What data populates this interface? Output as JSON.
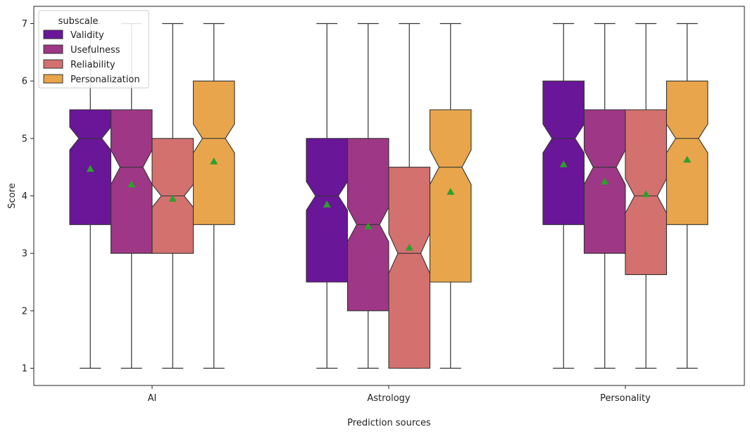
{
  "chart_data": {
    "type": "box",
    "title": "",
    "xlabel": "Prediction sources",
    "ylabel": "Score",
    "ylim": [
      0.7,
      7.3
    ],
    "yticks": [
      1,
      2,
      3,
      4,
      5,
      6,
      7
    ],
    "categories": [
      "AI",
      "Astrology",
      "Personality"
    ],
    "legend": {
      "title": "subscale",
      "position": "top-left"
    },
    "notched": true,
    "show_means": true,
    "mean_color": "#2ca02c",
    "series": [
      {
        "name": "Validity",
        "color": "#6a1699",
        "boxes": [
          {
            "whisker_low": 1,
            "q1": 3.5,
            "median": 5,
            "q3": 5.5,
            "whisker_high": 7,
            "notch_low": 4.8,
            "notch_high": 5.2,
            "mean": 4.47
          },
          {
            "whisker_low": 1,
            "q1": 2.5,
            "median": 4,
            "q3": 5,
            "whisker_high": 7,
            "notch_low": 3.75,
            "notch_high": 4.25,
            "mean": 3.85
          },
          {
            "whisker_low": 1,
            "q1": 3.5,
            "median": 5,
            "q3": 6,
            "whisker_high": 7,
            "notch_low": 4.75,
            "notch_high": 5.25,
            "mean": 4.55
          }
        ]
      },
      {
        "name": "Usefulness",
        "color": "#9e3785",
        "boxes": [
          {
            "whisker_low": 1,
            "q1": 3,
            "median": 4.5,
            "q3": 5.5,
            "whisker_high": 7,
            "notch_low": 4.2,
            "notch_high": 4.8,
            "mean": 4.2
          },
          {
            "whisker_low": 1,
            "q1": 2,
            "median": 3.5,
            "q3": 5,
            "whisker_high": 7,
            "notch_low": 3.2,
            "notch_high": 3.8,
            "mean": 3.47
          },
          {
            "whisker_low": 1,
            "q1": 3,
            "median": 4.5,
            "q3": 5.5,
            "whisker_high": 7,
            "notch_low": 4.2,
            "notch_high": 4.8,
            "mean": 4.25
          }
        ]
      },
      {
        "name": "Reliability",
        "color": "#d3716e",
        "boxes": [
          {
            "whisker_low": 1,
            "q1": 3,
            "median": 4,
            "q3": 5,
            "whisker_high": 7,
            "notch_low": 3.8,
            "notch_high": 4.2,
            "mean": 3.95
          },
          {
            "whisker_low": 1,
            "q1": 1,
            "median": 3,
            "q3": 4.5,
            "whisker_high": 7,
            "notch_low": 2.65,
            "notch_high": 3.35,
            "mean": 3.1
          },
          {
            "whisker_low": 1,
            "q1": 2.63,
            "median": 4,
            "q3": 5.5,
            "whisker_high": 7,
            "notch_low": 3.7,
            "notch_high": 4.3,
            "mean": 4.03
          }
        ]
      },
      {
        "name": "Personalization",
        "color": "#e8a54b",
        "boxes": [
          {
            "whisker_low": 1,
            "q1": 3.5,
            "median": 5,
            "q3": 6,
            "whisker_high": 7,
            "notch_low": 4.75,
            "notch_high": 5.25,
            "mean": 4.6
          },
          {
            "whisker_low": 1,
            "q1": 2.5,
            "median": 4.5,
            "q3": 5.5,
            "whisker_high": 7,
            "notch_low": 4.2,
            "notch_high": 4.8,
            "mean": 4.07
          },
          {
            "whisker_low": 1,
            "q1": 3.5,
            "median": 5,
            "q3": 6,
            "whisker_high": 7,
            "notch_low": 4.75,
            "notch_high": 5.25,
            "mean": 4.63
          }
        ]
      }
    ]
  }
}
